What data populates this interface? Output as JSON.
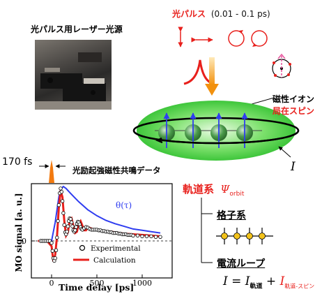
{
  "photo_caption": "光パルス用レーザー光源",
  "pulse_header": {
    "label": "光パルス",
    "range": "(0.01 - 0.1 ps)"
  },
  "spin_labels": {
    "magnetic_ion": "磁性イオン",
    "localized_spin": "局在スピン"
  },
  "pulse_width": "170 fs",
  "resonance_data_label": "光励起強磁性共鳴データ",
  "orbit_system": {
    "label": "軌道系",
    "symbol": "Ψ",
    "subscript": "orbit"
  },
  "current_symbol": "I",
  "lattice_label": "格子系",
  "loop_label": "電流ループ",
  "equation": {
    "lhs": "I",
    "equals": " = ",
    "term1": "I",
    "term1_sub": "軌道",
    "plus": " + ",
    "term2": "I",
    "term2_sub": "軌道-スピン"
  },
  "colors": {
    "red": "#e8201c",
    "blue": "#2f3df0",
    "green": "#4fd04a",
    "orange": "#f29a16",
    "ball": "#3d8d3d",
    "node": "#f2c21a"
  },
  "chart_data": {
    "type": "line",
    "xlabel": "Time delay [ps]",
    "ylabel": "MO signal [a. u.]",
    "x_ticks": [
      0,
      500,
      1000
    ],
    "y_ticks": [
      0
    ],
    "xlim": [
      -150,
      1200
    ],
    "annotation": "θ(τ)",
    "legend_position": "bottom-center",
    "series": [
      {
        "name": "Experimental",
        "style": "open-circles",
        "x": [
          -120,
          -100,
          -80,
          -60,
          -40,
          -20,
          0,
          10,
          20,
          30,
          40,
          50,
          60,
          70,
          80,
          90,
          100,
          110,
          120,
          130,
          140,
          150,
          160,
          170,
          180,
          190,
          200,
          210,
          220,
          230,
          240,
          250,
          260,
          270,
          280,
          290,
          300,
          310,
          320,
          330,
          340,
          360,
          380,
          400,
          420,
          440,
          460,
          480,
          500,
          520,
          540,
          560,
          580,
          600,
          620,
          640,
          660,
          680,
          700,
          720,
          740,
          760,
          780,
          800,
          820,
          840,
          860,
          880,
          900,
          950,
          1000,
          1050,
          1100,
          1150,
          1200
        ],
        "y": [
          0.0,
          0.0,
          0.0,
          0.0,
          0.0,
          0.0,
          -0.3,
          -1.5,
          -2.6,
          -3.0,
          -2.6,
          -1.4,
          0.5,
          3.0,
          5.4,
          7.2,
          7.9,
          7.4,
          6.0,
          4.2,
          2.4,
          1.3,
          1.0,
          1.4,
          2.2,
          3.0,
          3.4,
          3.3,
          2.8,
          2.2,
          1.6,
          1.4,
          1.6,
          2.1,
          2.6,
          2.9,
          2.8,
          2.5,
          2.1,
          1.8,
          1.7,
          1.9,
          2.1,
          2.0,
          1.8,
          1.7,
          1.7,
          1.7,
          1.7,
          1.6,
          1.6,
          1.5,
          1.5,
          1.4,
          1.4,
          1.3,
          1.3,
          1.2,
          1.2,
          1.2,
          1.1,
          1.1,
          1.0,
          1.0,
          1.0,
          0.9,
          0.9,
          0.9,
          0.8,
          0.8,
          0.7,
          0.7,
          0.7,
          0.6,
          0.6
        ]
      },
      {
        "name": "Calculation",
        "x": [
          -150,
          -100,
          -50,
          0,
          20,
          40,
          60,
          80,
          100,
          120,
          140,
          160,
          180,
          200,
          220,
          240,
          260,
          280,
          300,
          320,
          340,
          360,
          380,
          400,
          450,
          500,
          550,
          600,
          650,
          700,
          800,
          900,
          1000,
          1100,
          1200
        ],
        "y": [
          0.0,
          0.0,
          0.0,
          -0.8,
          -3.1,
          -2.1,
          0.7,
          5.0,
          7.6,
          6.6,
          3.1,
          0.8,
          1.3,
          3.1,
          3.4,
          2.3,
          1.2,
          1.4,
          2.6,
          3.0,
          2.3,
          1.6,
          1.6,
          2.1,
          1.8,
          1.7,
          1.6,
          1.5,
          1.4,
          1.3,
          1.1,
          1.0,
          0.9,
          0.8,
          0.7
        ]
      },
      {
        "name": "θ(τ)",
        "x": [
          -150,
          -50,
          0,
          40,
          80,
          100,
          130,
          160,
          200,
          250,
          300,
          400,
          500,
          600,
          700,
          800,
          900,
          1000,
          1100,
          1200
        ],
        "y": [
          0.0,
          0.0,
          0.0,
          2.8,
          6.6,
          7.8,
          8.2,
          7.9,
          7.3,
          6.6,
          5.9,
          4.7,
          3.8,
          3.1,
          2.6,
          2.2,
          1.8,
          1.6,
          1.4,
          1.2
        ]
      }
    ]
  }
}
